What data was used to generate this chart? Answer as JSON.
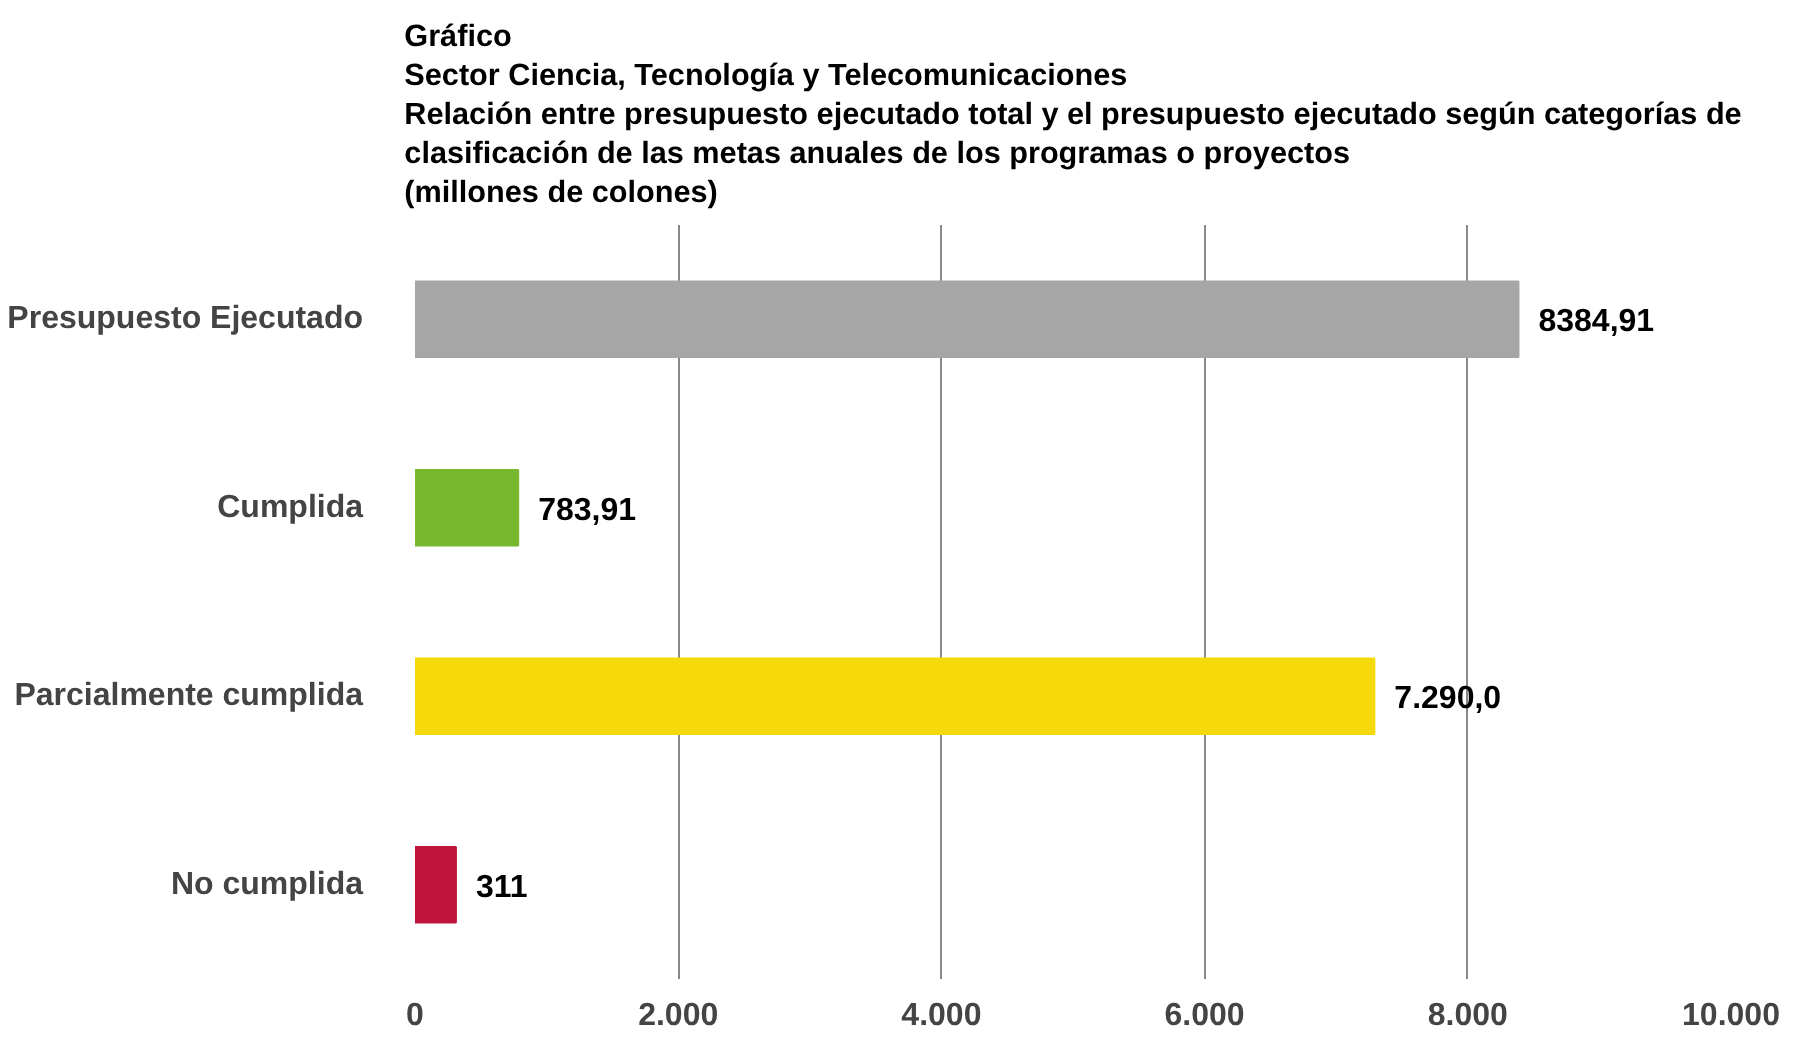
{
  "chart_data": {
    "type": "bar",
    "orientation": "horizontal",
    "title": "Gráfico\nSector Ciencia, Tecnología y Telecomunicaciones\nRelación entre presupuesto ejecutado total y el presupuesto ejecutado según categorías de\nclasificación de las metas anuales de los programas o proyectos\n(millones de colones)",
    "categories": [
      "Presupuesto Ejecutado",
      "Cumplida",
      "Parcialmente cumplida",
      "No cumplida"
    ],
    "values": [
      8384.91,
      783.91,
      7290.0,
      311
    ],
    "colors": [
      "#a6a6a6",
      "#77b82e",
      "#f5d90a",
      "#c0143c"
    ],
    "value_labels": [
      "8384,91",
      "783,91",
      "7.290,0",
      "311"
    ],
    "xlim": [
      0,
      10000
    ],
    "xticks": [
      {
        "value": 0,
        "label": "0"
      },
      {
        "value": 2000,
        "label": "2.000"
      },
      {
        "value": 4000,
        "label": "4.000"
      },
      {
        "value": 6000,
        "label": "6.000"
      },
      {
        "value": 8000,
        "label": "8.000"
      },
      {
        "value": 10000,
        "label": "10.000"
      }
    ],
    "grid": "x"
  }
}
